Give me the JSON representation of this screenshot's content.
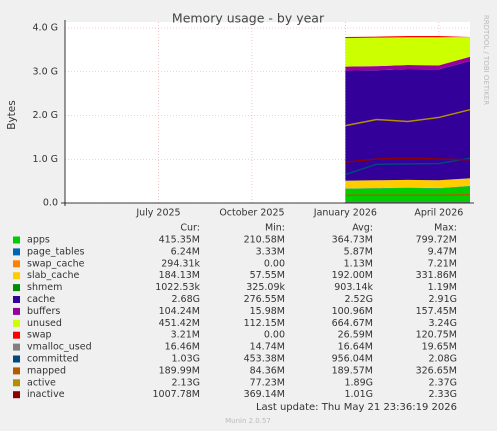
{
  "chart_data": {
    "type": "area",
    "title": "Memory usage - by year",
    "ylabel": "Bytes",
    "watermark": "RRDTOOL / TOBI OETIKER",
    "x": [
      "2026-01",
      "2026-02",
      "2026-03",
      "2026-04",
      "2026-05"
    ],
    "xlim": [
      "2025-04",
      "2026-05"
    ],
    "xticks": [
      {
        "value": "2025-07",
        "label": "July 2025"
      },
      {
        "value": "2025-10",
        "label": "October 2025"
      },
      {
        "value": "2026-01",
        "label": "January 2026"
      },
      {
        "value": "2026-04",
        "label": "April 2026"
      }
    ],
    "ylim": [
      0,
      4294967296
    ],
    "yticks": [
      {
        "value": 0,
        "label": "0.0"
      },
      {
        "value": 1073741824,
        "label": "1.0 G"
      },
      {
        "value": 2147483648,
        "label": "2.0 G"
      },
      {
        "value": 3221225472,
        "label": "3.0 G"
      },
      {
        "value": 4294967296,
        "label": "4.0 G"
      }
    ],
    "grid": true,
    "series": [
      {
        "name": "apps",
        "color": "#00cc00",
        "style": "stack",
        "values": [
          350000000,
          360000000,
          370000000,
          360000000,
          415000000
        ]
      },
      {
        "name": "page_tables",
        "color": "#0066b3",
        "style": "stack",
        "values": [
          6000000,
          6000000,
          6000000,
          6000000,
          6000000
        ]
      },
      {
        "name": "swap_cache",
        "color": "#ff8000",
        "style": "stack",
        "values": [
          1000000,
          1000000,
          1000000,
          1000000,
          300000
        ]
      },
      {
        "name": "slab_cache",
        "color": "#ffcc00",
        "style": "stack",
        "values": [
          190000000,
          190000000,
          190000000,
          190000000,
          184000000
        ]
      },
      {
        "name": "shmem",
        "color": "#008f00",
        "style": "stack",
        "values": [
          1000000,
          1000000,
          1000000,
          1000000,
          1000000
        ]
      },
      {
        "name": "cache",
        "color": "#330099",
        "style": "stack",
        "values": [
          2700000000,
          2700000000,
          2720000000,
          2720000000,
          2880000000
        ]
      },
      {
        "name": "buffers",
        "color": "#990099",
        "style": "stack",
        "values": [
          100000000,
          100000000,
          100000000,
          100000000,
          104000000
        ]
      },
      {
        "name": "unused",
        "color": "#ccff00",
        "style": "stack",
        "values": [
          700000000,
          700000000,
          680000000,
          690000000,
          480000000
        ]
      },
      {
        "name": "swap",
        "color": "#ff0000",
        "style": "stack",
        "values": [
          25000000,
          25000000,
          30000000,
          30000000,
          3200000
        ]
      },
      {
        "name": "vmalloc_used",
        "color": "#808080",
        "style": "line",
        "values": [
          16000000,
          16000000,
          16000000,
          16000000,
          16000000
        ]
      },
      {
        "name": "committed",
        "color": "#00487d",
        "style": "line",
        "values": [
          700000000,
          950000000,
          960000000,
          970000000,
          1100000000
        ]
      },
      {
        "name": "mapped",
        "color": "#b35a00",
        "style": "line",
        "values": [
          190000000,
          190000000,
          190000000,
          190000000,
          204000000
        ]
      },
      {
        "name": "active",
        "color": "#b38f00",
        "style": "line",
        "values": [
          1900000000,
          2050000000,
          2000000000,
          2100000000,
          2290000000
        ]
      },
      {
        "name": "inactive",
        "color": "#8c0000",
        "style": "line",
        "values": [
          1000000000,
          1080000000,
          1100000000,
          1080000000,
          1057000000
        ]
      }
    ],
    "legend_table": {
      "headers": [
        "Cur:",
        "Min:",
        "Avg:",
        "Max:"
      ],
      "rows": [
        [
          "415.35M",
          "210.58M",
          "364.73M",
          "799.72M"
        ],
        [
          "6.24M",
          "3.33M",
          "5.87M",
          "9.47M"
        ],
        [
          "294.31k",
          "0.00",
          "1.13M",
          "7.21M"
        ],
        [
          "184.13M",
          "57.55M",
          "192.00M",
          "331.86M"
        ],
        [
          "1022.53k",
          "325.09k",
          "903.14k",
          "1.19M"
        ],
        [
          "2.68G",
          "276.55M",
          "2.52G",
          "2.91G"
        ],
        [
          "104.24M",
          "15.98M",
          "100.96M",
          "157.45M"
        ],
        [
          "451.42M",
          "112.15M",
          "664.67M",
          "3.24G"
        ],
        [
          "3.21M",
          "0.00",
          "26.59M",
          "120.75M"
        ],
        [
          "16.46M",
          "14.74M",
          "16.64M",
          "19.65M"
        ],
        [
          "1.03G",
          "453.38M",
          "956.04M",
          "2.08G"
        ],
        [
          "189.99M",
          "84.36M",
          "189.57M",
          "326.65M"
        ],
        [
          "2.13G",
          "77.23M",
          "1.89G",
          "2.37G"
        ],
        [
          "1007.78M",
          "369.14M",
          "1.01G",
          "2.33G"
        ]
      ]
    },
    "last_update": "Last update: Thu May 21 23:36:19 2026",
    "footer": "Munin 2.0.57"
  }
}
